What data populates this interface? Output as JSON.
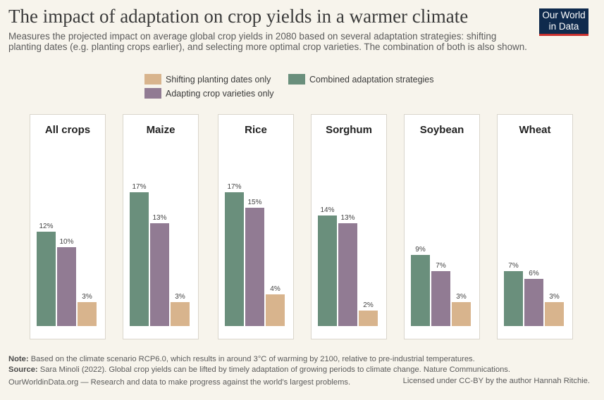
{
  "header": {
    "title": "The impact of adaptation on crop yields in a warmer climate",
    "subtitle": "Measures the projected impact on average global crop yields in 2080 based on several adaptation strategies: shifting planting dates (e.g. planting crops earlier), and selecting more optimal crop varieties. The combination of both is also shown.",
    "logo_line1": "Our World",
    "logo_line2": "in Data"
  },
  "colors": {
    "combined": "#6a8f7c",
    "varieties": "#917b93",
    "planting": "#d8b48d"
  },
  "chart_data": {
    "type": "bar",
    "title": "The impact of adaptation on crop yields in a warmer climate",
    "unit": "%",
    "ylim": [
      0,
      17
    ],
    "legend": [
      {
        "name": "Shifting planting dates only",
        "key": "planting"
      },
      {
        "name": "Adapting crop varieties only",
        "key": "varieties"
      },
      {
        "name": "Combined adaptation strategies",
        "key": "combined"
      }
    ],
    "series_order": [
      "Combined adaptation strategies",
      "Adapting crop varieties only",
      "Shifting planting dates only"
    ],
    "panels": [
      {
        "crop": "All crops",
        "values": [
          12,
          10,
          3
        ],
        "labels": [
          "12%",
          "10%",
          "3%"
        ]
      },
      {
        "crop": "Maize",
        "values": [
          17,
          13,
          3
        ],
        "labels": [
          "17%",
          "13%",
          "3%"
        ]
      },
      {
        "crop": "Rice",
        "values": [
          17,
          15,
          4
        ],
        "labels": [
          "17%",
          "15%",
          "4%"
        ]
      },
      {
        "crop": "Sorghum",
        "values": [
          14,
          13,
          2
        ],
        "labels": [
          "14%",
          "13%",
          "2%"
        ]
      },
      {
        "crop": "Soybean",
        "values": [
          9,
          7,
          3
        ],
        "labels": [
          "9%",
          "7%",
          "3%"
        ]
      },
      {
        "crop": "Wheat",
        "values": [
          7,
          6,
          3
        ],
        "labels": [
          "7%",
          "6%",
          "3%"
        ]
      }
    ]
  },
  "footer": {
    "note_label": "Note:",
    "note": "Based on the climate scenario RCP6.0, which results in around 3°C of warming by 2100, relative to pre-industrial temperatures.",
    "source_label": "Source:",
    "source": "Sara Minoli (2022). Global crop yields can be lifted by timely adaptation of growing periods to climate change. Nature Communications.",
    "site": "OurWorldinData.org — Research and data to make progress against the world's largest problems.",
    "license": "Licensed under CC-BY by the author Hannah Ritchie."
  }
}
